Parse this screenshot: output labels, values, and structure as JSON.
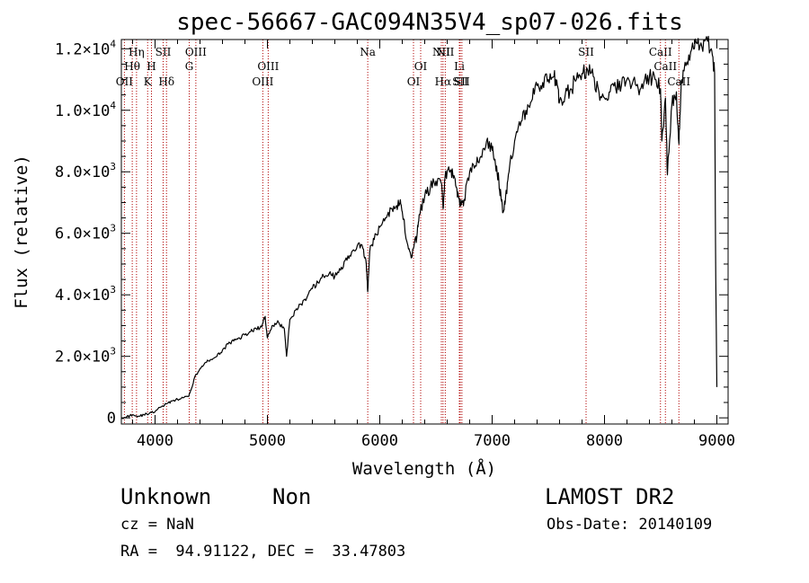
{
  "chart_data": {
    "type": "line",
    "title": "spec-56667-GAC094N35V4_sp07-026.fits",
    "xlabel": "Wavelength (Å)",
    "ylabel": "Flux (relative)",
    "xlim": [
      3700,
      9100
    ],
    "ylim": [
      -200,
      12300
    ],
    "x_ticks": [
      4000,
      5000,
      6000,
      7000,
      8000,
      9000
    ],
    "x_tick_labels": [
      "4000",
      "5000",
      "6000",
      "7000",
      "8000",
      "9000"
    ],
    "y_ticks": [
      0,
      2000,
      4000,
      6000,
      8000,
      10000,
      12000
    ],
    "y_tick_labels": [
      {
        "mant": "0",
        "exp": ""
      },
      {
        "mant": "2.0×10",
        "exp": "3"
      },
      {
        "mant": "4.0×10",
        "exp": "3"
      },
      {
        "mant": "6.0×10",
        "exp": "3"
      },
      {
        "mant": "8.0×10",
        "exp": "3"
      },
      {
        "mant": "1.0×10",
        "exp": "4"
      },
      {
        "mant": "1.2×10",
        "exp": "4"
      }
    ],
    "series": [
      {
        "color": "#000000",
        "x": [
          3700,
          3750,
          3800,
          3850,
          3900,
          3950,
          4000,
          4050,
          4100,
          4150,
          4200,
          4250,
          4300,
          4320,
          4350,
          4400,
          4450,
          4500,
          4550,
          4600,
          4650,
          4700,
          4750,
          4800,
          4850,
          4900,
          4950,
          4980,
          5000,
          5050,
          5100,
          5150,
          5170,
          5200,
          5250,
          5300,
          5350,
          5400,
          5450,
          5500,
          5550,
          5600,
          5650,
          5700,
          5750,
          5800,
          5850,
          5880,
          5893,
          5910,
          5950,
          6000,
          6050,
          6100,
          6150,
          6180,
          6200,
          6250,
          6280,
          6300,
          6330,
          6350,
          6400,
          6450,
          6500,
          6550,
          6563,
          6580,
          6620,
          6650,
          6680,
          6700,
          6720,
          6750,
          6800,
          6850,
          6900,
          6950,
          7000,
          7030,
          7060,
          7080,
          7100,
          7120,
          7150,
          7200,
          7250,
          7300,
          7350,
          7400,
          7450,
          7500,
          7550,
          7580,
          7600,
          7650,
          7700,
          7750,
          7800,
          7850,
          7900,
          7950,
          8000,
          8050,
          8100,
          8150,
          8200,
          8250,
          8300,
          8350,
          8400,
          8450,
          8498,
          8510,
          8542,
          8560,
          8600,
          8640,
          8662,
          8680,
          8700,
          8750,
          8800,
          8850,
          8900,
          8950,
          8980,
          8990,
          9000
        ],
        "y": [
          0,
          50,
          100,
          50,
          100,
          150,
          200,
          350,
          450,
          550,
          600,
          650,
          700,
          900,
          1300,
          1600,
          1800,
          1900,
          2000,
          2200,
          2400,
          2500,
          2600,
          2700,
          2800,
          2900,
          2950,
          3300,
          2600,
          3000,
          3100,
          2900,
          2000,
          3200,
          3500,
          3700,
          3900,
          4200,
          4400,
          4600,
          4700,
          4600,
          4800,
          5200,
          5400,
          5600,
          5500,
          5000,
          4100,
          5400,
          5800,
          6200,
          6500,
          6800,
          6900,
          7000,
          6700,
          5600,
          5200,
          5500,
          5900,
          6600,
          7200,
          7500,
          7700,
          7600,
          6800,
          7800,
          8000,
          7900,
          7500,
          7200,
          6900,
          7100,
          8000,
          8200,
          8500,
          9000,
          8700,
          8200,
          7700,
          7100,
          6700,
          7200,
          8000,
          9000,
          9500,
          10000,
          10300,
          10800,
          10900,
          11000,
          11100,
          10800,
          10300,
          10500,
          10700,
          11000,
          11200,
          11300,
          11100,
          10600,
          10400,
          10600,
          10700,
          10800,
          11000,
          10900,
          10700,
          10900,
          11100,
          11000,
          10700,
          9000,
          10400,
          7900,
          10200,
          10600,
          8900,
          10600,
          11300,
          11800,
          12000,
          12100,
          12300,
          12000,
          11200,
          4500,
          1000
        ]
      }
    ],
    "emission_lines": [
      {
        "x": 3727,
        "label": "OII",
        "row": 3
      },
      {
        "x": 3797,
        "label": "Hθ",
        "row": 2
      },
      {
        "x": 3835,
        "label": "Hη",
        "row": 1
      },
      {
        "x": 3934,
        "label": "K",
        "row": 3
      },
      {
        "x": 3968,
        "label": "H",
        "row": 2
      },
      {
        "x": 4072,
        "label": "SII",
        "row": 1
      },
      {
        "x": 4102,
        "label": "Hδ",
        "row": 3
      },
      {
        "x": 4304,
        "label": "G",
        "row": 2
      },
      {
        "x": 4363,
        "label": "OIII",
        "row": 1
      },
      {
        "x": 4959,
        "label": "OIII",
        "row": 3
      },
      {
        "x": 5007,
        "label": "OIII",
        "row": 2
      },
      {
        "x": 5893,
        "label": "Na",
        "row": 1
      },
      {
        "x": 6300,
        "label": "OI",
        "row": 3
      },
      {
        "x": 6364,
        "label": "OI",
        "row": 2
      },
      {
        "x": 6548,
        "label": "NII",
        "row": 1
      },
      {
        "x": 6563,
        "label": "Hα",
        "row": 3
      },
      {
        "x": 6583,
        "label": "NII",
        "row": 1
      },
      {
        "x": 6708,
        "label": "Li",
        "row": 2
      },
      {
        "x": 6716,
        "label": "SII",
        "row": 3
      },
      {
        "x": 6731,
        "label": "SII",
        "row": 3
      },
      {
        "x": 7836,
        "label": "SII",
        "row": 1
      },
      {
        "x": 8498,
        "label": "CaII",
        "row": 1
      },
      {
        "x": 8542,
        "label": "CaII",
        "row": 2
      },
      {
        "x": 8662,
        "label": "CaII",
        "row": 3
      }
    ],
    "grid": false,
    "legend": "none"
  },
  "info": {
    "class_name": "Unknown",
    "subclass_name": "Non",
    "survey": "LAMOST DR2",
    "redshift_text": "cz = NaN",
    "obs_date_text": "Obs-Date: 20140109",
    "coords_text": "RA =  94.91122, DEC =  33.47803"
  }
}
